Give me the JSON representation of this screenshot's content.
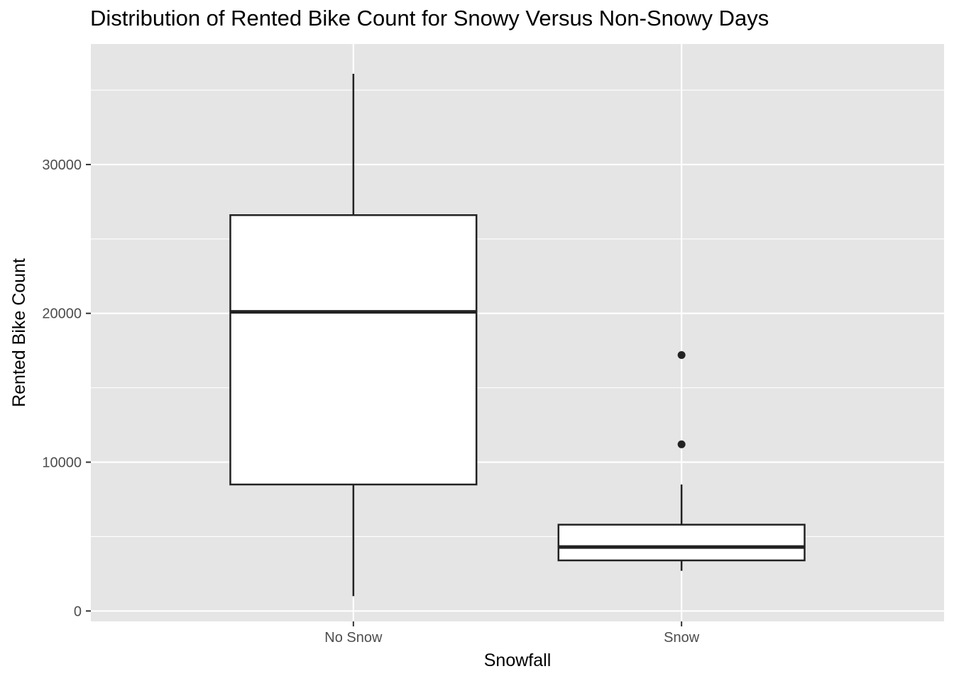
{
  "chart_data": {
    "type": "boxplot",
    "title": "Distribution of Rented Bike Count for Snowy Versus Non-Snowy Days",
    "xlabel": "Snowfall",
    "ylabel": "Rented Bike Count",
    "categories": [
      "No Snow",
      "Snow"
    ],
    "ylim": [
      -700,
      38100
    ],
    "yticks": [
      0,
      10000,
      20000,
      30000
    ],
    "ytick_labels": [
      "0",
      "10000",
      "20000",
      "30000"
    ],
    "grid": true,
    "boxes": [
      {
        "category": "No Snow",
        "whisker_low": 1000,
        "q1": 8500,
        "median": 20100,
        "q3": 26600,
        "whisker_high": 36100,
        "outliers": []
      },
      {
        "category": "Snow",
        "whisker_low": 2700,
        "q1": 3400,
        "median": 4300,
        "q3": 5800,
        "whisker_high": 8500,
        "outliers": [
          11200,
          17200
        ]
      }
    ],
    "colors": {
      "panel": "#e5e5e5",
      "grid": "#ffffff",
      "box_fill": "#ffffff",
      "box_line": "#222222",
      "tick_text": "#4d4d4d"
    }
  }
}
